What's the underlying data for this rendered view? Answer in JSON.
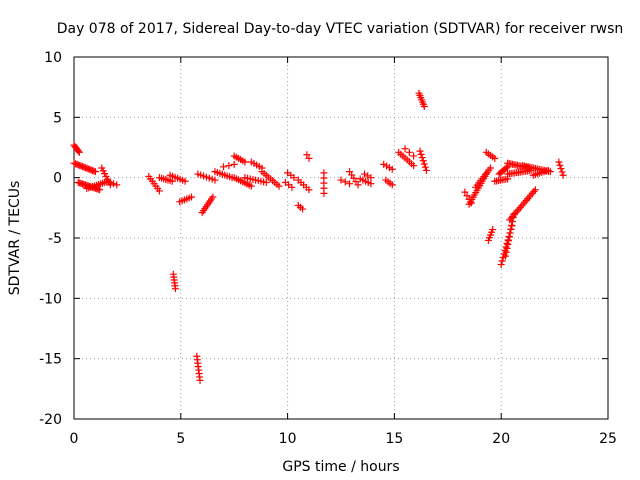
{
  "chart_data": {
    "type": "scatter",
    "title": "Day 078 of 2017, Sidereal Day-to-day VTEC variation (SDTVAR) for receiver rwsn",
    "xlabel": "GPS time / hours",
    "ylabel": "SDTVAR / TECUs",
    "xlim": [
      0,
      25
    ],
    "ylim": [
      -20,
      10
    ],
    "xticks": [
      0,
      5,
      10,
      15,
      20,
      25
    ],
    "yticks": [
      -20,
      -15,
      -10,
      -5,
      0,
      5,
      10
    ],
    "grid": true,
    "marker": "+",
    "color": "#ff0000",
    "segments": [
      {
        "x0": 0.0,
        "x1": 0.25,
        "y0": 2.7,
        "y1": 2.1,
        "n": 7
      },
      {
        "x0": 0.0,
        "x1": 1.0,
        "y0": 1.2,
        "y1": 0.5,
        "n": 16
      },
      {
        "x0": 0.2,
        "x1": 1.2,
        "y0": -0.4,
        "y1": -1.0,
        "n": 16
      },
      {
        "x0": 0.6,
        "x1": 1.6,
        "y0": -0.9,
        "y1": -0.3,
        "n": 12
      },
      {
        "x0": 1.3,
        "x1": 1.7,
        "y0": 0.8,
        "y1": -0.6,
        "n": 7
      },
      {
        "x0": 1.7,
        "x1": 2.0,
        "y0": -0.4,
        "y1": -0.6,
        "n": 3
      },
      {
        "x0": 3.5,
        "x1": 4.0,
        "y0": 0.1,
        "y1": -1.1,
        "n": 7
      },
      {
        "x0": 4.0,
        "x1": 4.6,
        "y0": 0.0,
        "y1": -0.3,
        "n": 7
      },
      {
        "x0": 4.5,
        "x1": 5.2,
        "y0": 0.2,
        "y1": -0.3,
        "n": 7
      },
      {
        "x0": 4.65,
        "x1": 4.75,
        "y0": -8.0,
        "y1": -9.2,
        "n": 6
      },
      {
        "x0": 4.95,
        "x1": 5.5,
        "y0": -2.0,
        "y1": -1.6,
        "n": 6
      },
      {
        "x0": 5.75,
        "x1": 5.9,
        "y0": -14.8,
        "y1": -16.8,
        "n": 8
      },
      {
        "x0": 6.0,
        "x1": 6.5,
        "y0": -2.9,
        "y1": -1.6,
        "n": 9
      },
      {
        "x0": 5.8,
        "x1": 6.6,
        "y0": 0.3,
        "y1": -0.2,
        "n": 7
      },
      {
        "x0": 6.6,
        "x1": 7.4,
        "y0": 0.5,
        "y1": 0.0,
        "n": 8
      },
      {
        "x0": 7.0,
        "x1": 7.5,
        "y0": 0.9,
        "y1": 1.1,
        "n": 3
      },
      {
        "x0": 7.5,
        "x1": 8.0,
        "y0": 1.8,
        "y1": 1.3,
        "n": 6
      },
      {
        "x0": 7.5,
        "x1": 8.3,
        "y0": 0.0,
        "y1": -0.7,
        "n": 9
      },
      {
        "x0": 8.0,
        "x1": 9.0,
        "y0": 0.0,
        "y1": -0.4,
        "n": 9
      },
      {
        "x0": 8.3,
        "x1": 8.8,
        "y0": 1.3,
        "y1": 0.8,
        "n": 5
      },
      {
        "x0": 8.8,
        "x1": 9.6,
        "y0": 0.5,
        "y1": -0.7,
        "n": 9
      },
      {
        "x0": 9.9,
        "x1": 10.2,
        "y0": -0.4,
        "y1": -0.8,
        "n": 3
      },
      {
        "x0": 10.0,
        "x1": 10.3,
        "y0": 0.4,
        "y1": 0.0,
        "n": 3
      },
      {
        "x0": 10.5,
        "x1": 10.7,
        "y0": -2.3,
        "y1": -2.6,
        "n": 3
      },
      {
        "x0": 10.5,
        "x1": 11.0,
        "y0": -0.2,
        "y1": -1.0,
        "n": 5
      },
      {
        "x0": 10.9,
        "x1": 11.0,
        "y0": 1.9,
        "y1": 1.6,
        "n": 2
      },
      {
        "x0": 11.7,
        "x1": 11.7,
        "y0": 0.4,
        "y1": -1.3,
        "n": 5
      },
      {
        "x0": 12.5,
        "x1": 12.9,
        "y0": -0.2,
        "y1": -0.5,
        "n": 3
      },
      {
        "x0": 12.9,
        "x1": 13.3,
        "y0": 0.5,
        "y1": -0.6,
        "n": 5
      },
      {
        "x0": 13.4,
        "x1": 13.9,
        "y0": -0.1,
        "y1": -0.5,
        "n": 5
      },
      {
        "x0": 13.6,
        "x1": 13.9,
        "y0": 0.3,
        "y1": 0.0,
        "n": 3
      },
      {
        "x0": 14.5,
        "x1": 14.9,
        "y0": 1.1,
        "y1": 0.7,
        "n": 4
      },
      {
        "x0": 14.6,
        "x1": 14.9,
        "y0": -0.2,
        "y1": -0.6,
        "n": 4
      },
      {
        "x0": 15.2,
        "x1": 15.9,
        "y0": 2.1,
        "y1": 1.0,
        "n": 8
      },
      {
        "x0": 15.5,
        "x1": 15.9,
        "y0": 2.4,
        "y1": 1.8,
        "n": 3
      },
      {
        "x0": 16.15,
        "x1": 16.4,
        "y0": 7.0,
        "y1": 5.9,
        "n": 7
      },
      {
        "x0": 16.2,
        "x1": 16.5,
        "y0": 2.2,
        "y1": 0.6,
        "n": 7
      },
      {
        "x0": 18.3,
        "x1": 18.6,
        "y0": -1.2,
        "y1": -2.1,
        "n": 4
      },
      {
        "x0": 18.5,
        "x1": 19.3,
        "y0": -2.2,
        "y1": 0.3,
        "n": 14
      },
      {
        "x0": 18.8,
        "x1": 19.5,
        "y0": -0.8,
        "y1": 0.8,
        "n": 10
      },
      {
        "x0": 19.3,
        "x1": 19.7,
        "y0": 2.1,
        "y1": 1.6,
        "n": 5
      },
      {
        "x0": 19.4,
        "x1": 19.6,
        "y0": -5.2,
        "y1": -4.3,
        "n": 5
      },
      {
        "x0": 19.7,
        "x1": 20.3,
        "y0": -0.3,
        "y1": -0.1,
        "n": 8
      },
      {
        "x0": 19.9,
        "x1": 20.3,
        "y0": 0.3,
        "y1": 0.9,
        "n": 8
      },
      {
        "x0": 20.0,
        "x1": 20.5,
        "y0": -7.2,
        "y1": -4.0,
        "n": 12
      },
      {
        "x0": 20.2,
        "x1": 20.6,
        "y0": -6.5,
        "y1": -3.0,
        "n": 12
      },
      {
        "x0": 20.4,
        "x1": 21.6,
        "y0": -3.5,
        "y1": -1.0,
        "n": 18
      },
      {
        "x0": 20.3,
        "x1": 21.3,
        "y0": 1.2,
        "y1": 0.8,
        "n": 14
      },
      {
        "x0": 20.3,
        "x1": 21.4,
        "y0": 0.3,
        "y1": 0.6,
        "n": 14
      },
      {
        "x0": 21.0,
        "x1": 22.3,
        "y0": 1.0,
        "y1": 0.5,
        "n": 16
      },
      {
        "x0": 21.5,
        "x1": 22.2,
        "y0": 0.2,
        "y1": 0.6,
        "n": 8
      },
      {
        "x0": 22.7,
        "x1": 22.9,
        "y0": 1.3,
        "y1": 0.2,
        "n": 5
      }
    ]
  }
}
